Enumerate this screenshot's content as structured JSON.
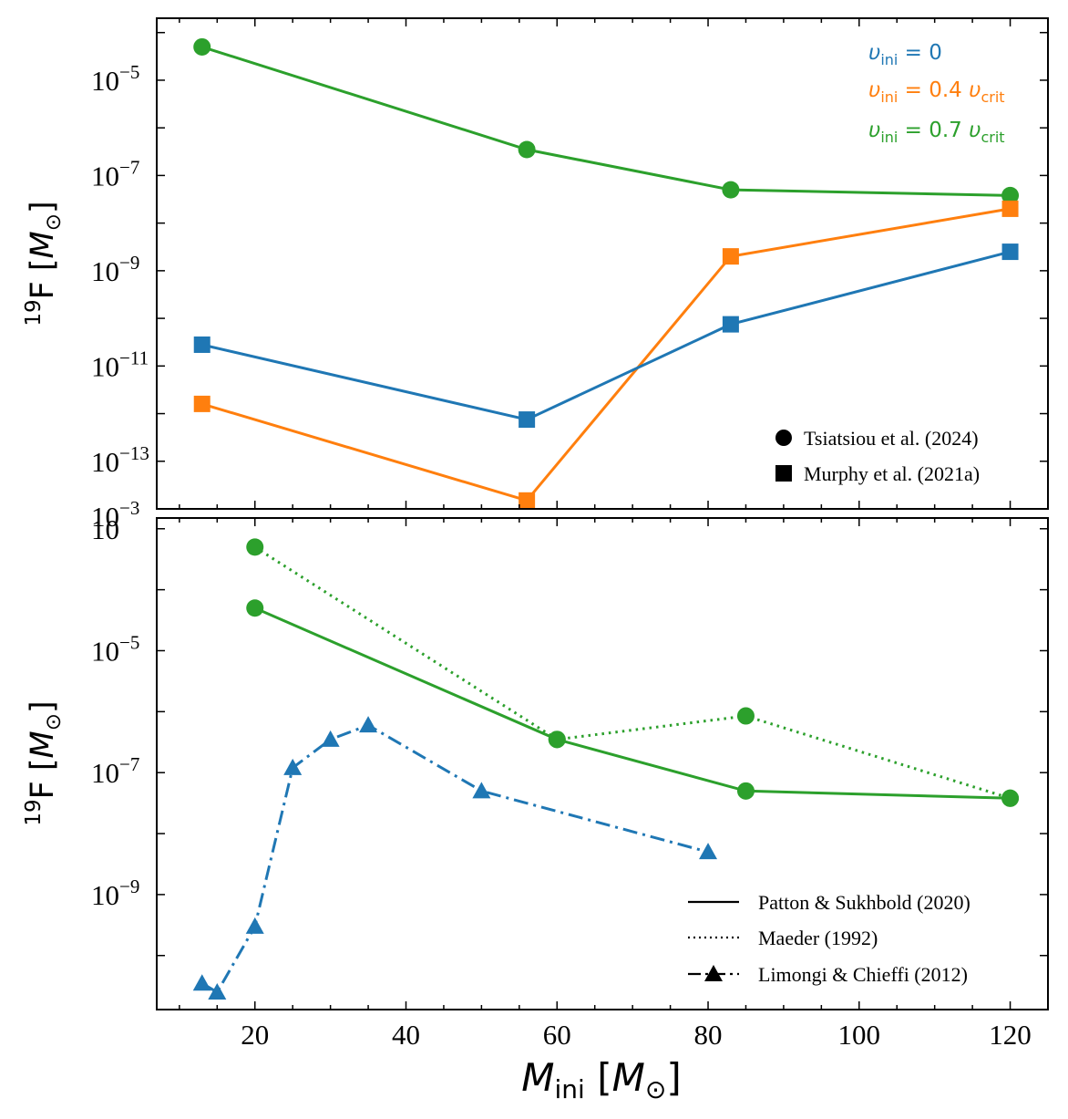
{
  "colors": {
    "blue": "#1f77b4",
    "orange": "#ff7f0e",
    "green": "#2ca02c",
    "black": "#000000"
  },
  "chart_data": [
    {
      "type": "line",
      "panel": "top",
      "yscale": "log",
      "xlim": [
        7,
        125
      ],
      "ylim": [
        1e-14,
        0.0002
      ],
      "ylabel": {
        "sup": "19",
        "base": "F [",
        "italic": "M",
        "sub": "⊙",
        "close": "]"
      },
      "yticks": [
        {
          "value": 1e-05,
          "base": "10",
          "exp": "−5"
        },
        {
          "value": 1e-07,
          "base": "10",
          "exp": "−7"
        },
        {
          "value": 1e-09,
          "base": "10",
          "exp": "−9"
        },
        {
          "value": 1e-11,
          "base": "10",
          "exp": "−11"
        },
        {
          "value": 1e-13,
          "base": "10",
          "exp": "−13"
        }
      ],
      "stray_labels": [
        {
          "value": "10",
          "exp": "−3"
        }
      ],
      "velocity_legend": [
        {
          "color": "blue",
          "sym": "υ",
          "sub": "ini",
          "rest": " = 0",
          "tail_sym": "",
          "tail_sub": ""
        },
        {
          "color": "orange",
          "sym": "υ",
          "sub": "ini",
          "rest": " = 0.4 ",
          "tail_sym": "υ",
          "tail_sub": "crit"
        },
        {
          "color": "green",
          "sym": "υ",
          "sub": "ini",
          "rest": " = 0.7 ",
          "tail_sym": "υ",
          "tail_sub": "crit"
        }
      ],
      "marker_legend": [
        {
          "marker": "circle",
          "label": "Tsiatsiou et al. (2024)"
        },
        {
          "marker": "square",
          "label": "Murphy et al. (2021a)"
        }
      ],
      "series": [
        {
          "color": "green",
          "marker": "circle",
          "linestyle": "solid",
          "x": [
            13,
            56,
            83,
            120
          ],
          "y": [
            5e-05,
            3.5e-07,
            5e-08,
            3.8e-08
          ]
        },
        {
          "color": "orange",
          "marker": "square",
          "linestyle": "solid",
          "x": [
            13,
            56,
            83,
            120
          ],
          "y": [
            1.6e-12,
            1.5e-14,
            2e-09,
            2e-08
          ]
        },
        {
          "color": "blue",
          "marker": "square",
          "linestyle": "solid",
          "x": [
            13,
            56,
            83,
            120
          ],
          "y": [
            2.8e-11,
            7.5e-13,
            7.5e-11,
            2.5e-09
          ]
        }
      ]
    },
    {
      "type": "line",
      "panel": "bottom",
      "yscale": "log",
      "xlim": [
        7,
        125
      ],
      "ylim": [
        1.3e-11,
        0.0015
      ],
      "xlabel": {
        "italic": "M",
        "sub": "ini",
        "mid": " [",
        "italic2": "M",
        "sub2": "⊙",
        "close": "]"
      },
      "ylabel": {
        "sup": "19",
        "base": "F [",
        "italic": "M",
        "sub": "⊙",
        "close": "]"
      },
      "xticks": [
        20,
        40,
        60,
        80,
        100,
        120
      ],
      "yticks": [
        {
          "value": 0.001,
          "base": "10",
          "exp": ""
        },
        {
          "value": 1e-05,
          "base": "10",
          "exp": "−5"
        },
        {
          "value": 1e-07,
          "base": "10",
          "exp": "−7"
        },
        {
          "value": 1e-09,
          "base": "10",
          "exp": "−9"
        }
      ],
      "line_legend": [
        {
          "style": "solid",
          "label": "Patton & Sukhbold (2020)"
        },
        {
          "style": "dotted",
          "label": "Maeder (1992)"
        },
        {
          "style": "dashdot-triangle",
          "label": "Limongi & Chieffi (2012)"
        }
      ],
      "series": [
        {
          "color": "green",
          "marker": "circle",
          "linestyle": "solid",
          "x": [
            20,
            60,
            85,
            120
          ],
          "y": [
            5e-05,
            3.5e-07,
            5e-08,
            3.8e-08
          ]
        },
        {
          "color": "green",
          "marker": "circle",
          "linestyle": "dotted",
          "x": [
            20,
            60,
            85,
            120
          ],
          "y": [
            0.0005,
            3.5e-07,
            8.5e-07,
            3.8e-08
          ]
        },
        {
          "color": "blue",
          "marker": "triangle",
          "linestyle": "dashdot",
          "x": [
            13,
            15,
            20,
            25,
            30,
            35,
            50,
            80
          ],
          "y": [
            3.5e-11,
            2.5e-11,
            3e-10,
            1.2e-07,
            3.5e-07,
            6e-07,
            5e-08,
            5e-09
          ]
        }
      ]
    }
  ]
}
